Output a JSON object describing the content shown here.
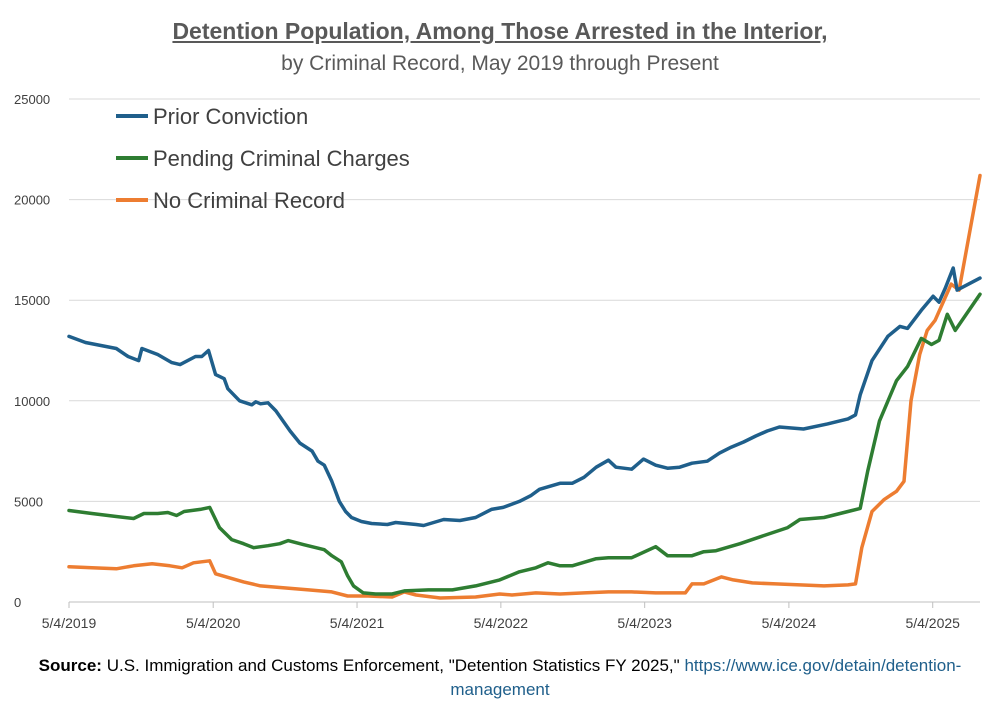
{
  "header": {
    "title": "Detention Population, Among Those Arrested in the Interior,",
    "subtitle": "by Criminal Record, May 2019 through Present"
  },
  "source": {
    "label": "Source:",
    "text": "U.S. Immigration and Customs Enforcement, \"Detention Statistics FY 2025,\"",
    "url": "https://www.ice.gov/detain/detention-management"
  },
  "chart_data": {
    "type": "line",
    "title": "Detention Population, Among Those Arrested in the Interior,",
    "subtitle": "by Criminal Record, May 2019 through Present",
    "xlabel": "",
    "ylabel": "",
    "ylim": [
      0,
      25000
    ],
    "yticks": [
      0,
      5000,
      10000,
      15000,
      20000,
      25000
    ],
    "ytick_labels": [
      "0",
      "5000",
      "10000",
      "15000",
      "20000",
      "25000"
    ],
    "xlim": [
      "2019-05-04",
      "2025-09-01"
    ],
    "xticks": [
      "2019-05-04",
      "2020-05-04",
      "2021-05-04",
      "2022-05-04",
      "2023-05-04",
      "2024-05-04",
      "2025-05-04"
    ],
    "xtick_labels": [
      "5/4/2019",
      "5/4/2020",
      "5/4/2021",
      "5/4/2022",
      "5/4/2023",
      "5/4/2024",
      "5/4/2025"
    ],
    "grid": true,
    "legend_position": "top-left",
    "series": [
      {
        "name": "Prior Conviction",
        "color": "#1f5f8b",
        "points": [
          [
            "2019-05-04",
            13200
          ],
          [
            "2019-06-15",
            12900
          ],
          [
            "2019-09-01",
            12600
          ],
          [
            "2019-10-01",
            12200
          ],
          [
            "2019-10-28",
            12000
          ],
          [
            "2019-11-05",
            12600
          ],
          [
            "2019-12-15",
            12300
          ],
          [
            "2020-01-20",
            11900
          ],
          [
            "2020-02-10",
            11800
          ],
          [
            "2020-03-20",
            12200
          ],
          [
            "2020-04-05",
            12200
          ],
          [
            "2020-04-22",
            12500
          ],
          [
            "2020-05-10",
            11300
          ],
          [
            "2020-06-01",
            11100
          ],
          [
            "2020-06-10",
            10600
          ],
          [
            "2020-07-10",
            10000
          ],
          [
            "2020-08-10",
            9800
          ],
          [
            "2020-08-20",
            9950
          ],
          [
            "2020-09-01",
            9850
          ],
          [
            "2020-09-20",
            9900
          ],
          [
            "2020-10-10",
            9500
          ],
          [
            "2020-11-15",
            8500
          ],
          [
            "2020-12-10",
            7900
          ],
          [
            "2021-01-10",
            7500
          ],
          [
            "2021-01-25",
            7000
          ],
          [
            "2021-02-10",
            6800
          ],
          [
            "2021-03-01",
            6000
          ],
          [
            "2021-03-20",
            5000
          ],
          [
            "2021-04-05",
            4500
          ],
          [
            "2021-04-20",
            4200
          ],
          [
            "2021-05-15",
            4000
          ],
          [
            "2021-06-10",
            3900
          ],
          [
            "2021-07-20",
            3850
          ],
          [
            "2021-08-10",
            3950
          ],
          [
            "2021-10-01",
            3850
          ],
          [
            "2021-10-20",
            3800
          ],
          [
            "2021-12-10",
            4100
          ],
          [
            "2022-01-20",
            4050
          ],
          [
            "2022-03-01",
            4200
          ],
          [
            "2022-04-10",
            4600
          ],
          [
            "2022-05-10",
            4700
          ],
          [
            "2022-06-20",
            5000
          ],
          [
            "2022-07-20",
            5300
          ],
          [
            "2022-08-10",
            5600
          ],
          [
            "2022-10-01",
            5900
          ],
          [
            "2022-11-01",
            5900
          ],
          [
            "2022-12-01",
            6200
          ],
          [
            "2023-01-01",
            6700
          ],
          [
            "2023-02-01",
            7050
          ],
          [
            "2023-02-20",
            6700
          ],
          [
            "2023-04-01",
            6600
          ],
          [
            "2023-05-01",
            7100
          ],
          [
            "2023-06-01",
            6800
          ],
          [
            "2023-07-01",
            6650
          ],
          [
            "2023-08-01",
            6700
          ],
          [
            "2023-09-01",
            6900
          ],
          [
            "2023-10-10",
            7000
          ],
          [
            "2023-11-10",
            7400
          ],
          [
            "2023-12-10",
            7700
          ],
          [
            "2024-01-10",
            7950
          ],
          [
            "2024-02-10",
            8250
          ],
          [
            "2024-03-10",
            8500
          ],
          [
            "2024-04-10",
            8700
          ],
          [
            "2024-06-10",
            8600
          ],
          [
            "2024-08-10",
            8850
          ],
          [
            "2024-09-10",
            9000
          ],
          [
            "2024-10-01",
            9100
          ],
          [
            "2024-10-20",
            9300
          ],
          [
            "2024-11-01",
            10300
          ],
          [
            "2024-12-01",
            12000
          ],
          [
            "2025-01-10",
            13200
          ],
          [
            "2025-02-10",
            13700
          ],
          [
            "2025-03-01",
            13600
          ],
          [
            "2025-04-05",
            14500
          ],
          [
            "2025-05-05",
            15200
          ],
          [
            "2025-05-20",
            14900
          ],
          [
            "2025-06-05",
            15600
          ],
          [
            "2025-06-25",
            16600
          ],
          [
            "2025-07-05",
            15500
          ],
          [
            "2025-09-01",
            16100
          ]
        ]
      },
      {
        "name": "Pending Criminal Charges",
        "color": "#2e7d32",
        "points": [
          [
            "2019-05-04",
            4550
          ],
          [
            "2019-07-01",
            4400
          ],
          [
            "2019-09-01",
            4250
          ],
          [
            "2019-10-15",
            4150
          ],
          [
            "2019-11-10",
            4400
          ],
          [
            "2019-12-15",
            4400
          ],
          [
            "2020-01-10",
            4450
          ],
          [
            "2020-02-01",
            4300
          ],
          [
            "2020-02-20",
            4500
          ],
          [
            "2020-04-01",
            4600
          ],
          [
            "2020-04-25",
            4700
          ],
          [
            "2020-05-20",
            3700
          ],
          [
            "2020-06-20",
            3100
          ],
          [
            "2020-07-20",
            2900
          ],
          [
            "2020-08-15",
            2700
          ],
          [
            "2020-09-20",
            2800
          ],
          [
            "2020-10-20",
            2900
          ],
          [
            "2020-11-10",
            3050
          ],
          [
            "2020-12-20",
            2850
          ],
          [
            "2021-01-20",
            2700
          ],
          [
            "2021-02-10",
            2600
          ],
          [
            "2021-03-01",
            2300
          ],
          [
            "2021-03-25",
            2000
          ],
          [
            "2021-04-10",
            1300
          ],
          [
            "2021-04-25",
            800
          ],
          [
            "2021-05-20",
            450
          ],
          [
            "2021-06-20",
            400
          ],
          [
            "2021-08-01",
            400
          ],
          [
            "2021-09-01",
            550
          ],
          [
            "2021-11-01",
            600
          ],
          [
            "2022-01-01",
            600
          ],
          [
            "2022-03-01",
            800
          ],
          [
            "2022-05-01",
            1100
          ],
          [
            "2022-06-20",
            1500
          ],
          [
            "2022-08-01",
            1700
          ],
          [
            "2022-09-01",
            1950
          ],
          [
            "2022-10-01",
            1800
          ],
          [
            "2022-11-01",
            1800
          ],
          [
            "2023-01-01",
            2150
          ],
          [
            "2023-02-01",
            2200
          ],
          [
            "2023-04-01",
            2200
          ],
          [
            "2023-06-01",
            2750
          ],
          [
            "2023-07-01",
            2300
          ],
          [
            "2023-09-01",
            2300
          ],
          [
            "2023-10-01",
            2500
          ],
          [
            "2023-11-01",
            2550
          ],
          [
            "2024-01-01",
            2900
          ],
          [
            "2024-03-01",
            3300
          ],
          [
            "2024-05-01",
            3700
          ],
          [
            "2024-06-01",
            4100
          ],
          [
            "2024-08-01",
            4200
          ],
          [
            "2024-10-01",
            4500
          ],
          [
            "2024-11-01",
            4650
          ],
          [
            "2024-11-20",
            6500
          ],
          [
            "2024-12-20",
            9000
          ],
          [
            "2025-02-01",
            11000
          ],
          [
            "2025-03-01",
            11700
          ],
          [
            "2025-04-05",
            13100
          ],
          [
            "2025-05-01",
            12800
          ],
          [
            "2025-05-20",
            13000
          ],
          [
            "2025-06-10",
            14300
          ],
          [
            "2025-06-30",
            13500
          ],
          [
            "2025-09-01",
            15300
          ]
        ]
      },
      {
        "name": "No Criminal Record",
        "color": "#ed7d31",
        "points": [
          [
            "2019-05-04",
            1750
          ],
          [
            "2019-07-01",
            1700
          ],
          [
            "2019-09-01",
            1650
          ],
          [
            "2019-10-15",
            1800
          ],
          [
            "2019-12-01",
            1900
          ],
          [
            "2020-01-15",
            1800
          ],
          [
            "2020-02-15",
            1700
          ],
          [
            "2020-03-15",
            1950
          ],
          [
            "2020-04-25",
            2050
          ],
          [
            "2020-05-10",
            1400
          ],
          [
            "2020-06-15",
            1200
          ],
          [
            "2020-07-20",
            1000
          ],
          [
            "2020-09-01",
            800
          ],
          [
            "2020-11-01",
            700
          ],
          [
            "2021-01-01",
            600
          ],
          [
            "2021-03-01",
            500
          ],
          [
            "2021-04-10",
            300
          ],
          [
            "2021-06-01",
            300
          ],
          [
            "2021-08-01",
            250
          ],
          [
            "2021-09-01",
            500
          ],
          [
            "2021-10-01",
            350
          ],
          [
            "2021-12-01",
            200
          ],
          [
            "2022-03-01",
            250
          ],
          [
            "2022-05-01",
            400
          ],
          [
            "2022-06-01",
            350
          ],
          [
            "2022-08-01",
            450
          ],
          [
            "2022-10-01",
            400
          ],
          [
            "2022-12-01",
            450
          ],
          [
            "2023-02-01",
            500
          ],
          [
            "2023-04-01",
            500
          ],
          [
            "2023-06-01",
            450
          ],
          [
            "2023-08-15",
            450
          ],
          [
            "2023-09-01",
            900
          ],
          [
            "2023-10-01",
            900
          ],
          [
            "2023-11-15",
            1250
          ],
          [
            "2023-12-15",
            1100
          ],
          [
            "2024-02-01",
            950
          ],
          [
            "2024-04-01",
            900
          ],
          [
            "2024-06-01",
            850
          ],
          [
            "2024-08-01",
            800
          ],
          [
            "2024-10-01",
            850
          ],
          [
            "2024-10-20",
            900
          ],
          [
            "2024-11-05",
            2700
          ],
          [
            "2024-12-01",
            4500
          ],
          [
            "2025-01-01",
            5100
          ],
          [
            "2025-02-01",
            5500
          ],
          [
            "2025-02-20",
            6000
          ],
          [
            "2025-03-10",
            10000
          ],
          [
            "2025-04-01",
            12300
          ],
          [
            "2025-04-20",
            13500
          ],
          [
            "2025-05-10",
            14000
          ],
          [
            "2025-06-20",
            15800
          ],
          [
            "2025-07-10",
            15500
          ],
          [
            "2025-09-01",
            21200
          ]
        ]
      }
    ]
  }
}
